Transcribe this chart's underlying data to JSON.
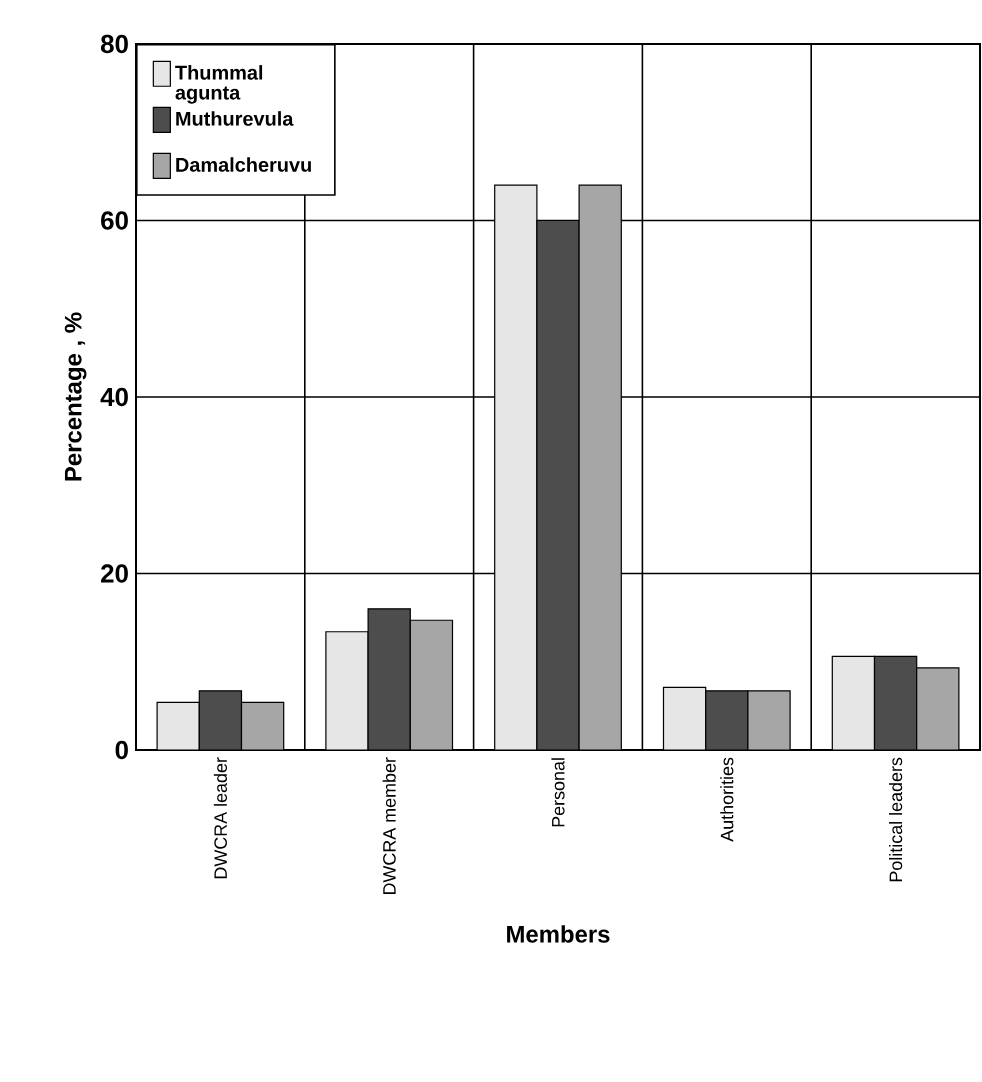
{
  "chart_data": {
    "type": "bar",
    "xlabel": "Members",
    "ylabel": "Percentage , %",
    "categories": [
      "DWCRA leader",
      "DWCRA member",
      "Personal",
      "Authorities",
      "Political leaders"
    ],
    "series": [
      {
        "name": "Thummal agunta",
        "color": "#e6e6e6",
        "values": [
          5.4,
          13.4,
          64,
          7.1,
          10.6
        ]
      },
      {
        "name": "Muthurevula",
        "color": "#4d4d4d",
        "values": [
          6.7,
          16,
          60,
          6.7,
          10.6
        ]
      },
      {
        "name": "Damalcheruvu",
        "color": "#a6a6a6",
        "values": [
          5.4,
          14.7,
          64,
          6.7,
          9.3
        ]
      }
    ],
    "ylim": [
      0,
      80
    ],
    "yticks": [
      0,
      20,
      40,
      60,
      80
    ],
    "grid": true,
    "legend": "top left"
  }
}
